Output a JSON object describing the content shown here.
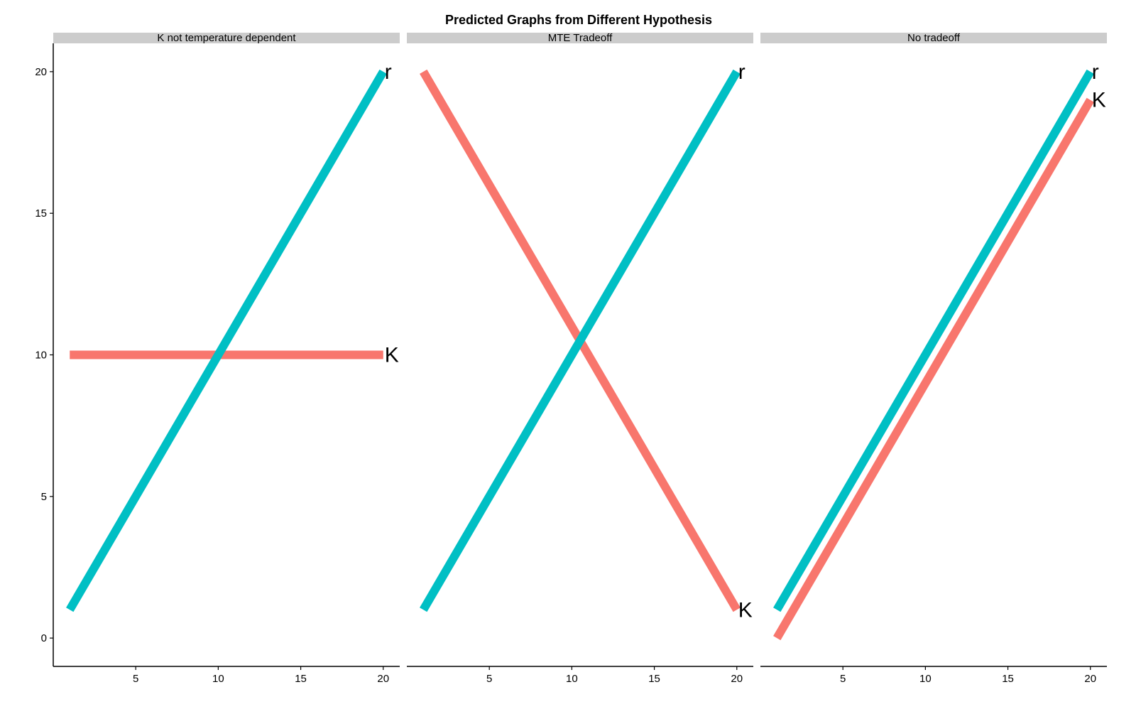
{
  "chart_data": {
    "type": "line",
    "title": "Predicted Graphs from Different Hypothesis",
    "xlabel": "",
    "ylabel": "",
    "xlim": [
      0,
      21
    ],
    "ylim": [
      -1,
      21
    ],
    "x_ticks": [
      "5",
      "10",
      "15",
      "20"
    ],
    "y_ticks": [
      "0",
      "5",
      "10",
      "15",
      "20"
    ],
    "grid": false,
    "legend": "none",
    "colors": {
      "K": "#F8766D",
      "r": "#00BFC4",
      "strip": "#CCCCCC"
    },
    "panels": [
      {
        "title": "K not temperature dependent",
        "series": [
          {
            "label": "K",
            "x": [
              1,
              20
            ],
            "y": [
              10,
              10
            ]
          },
          {
            "label": "r",
            "x": [
              1,
              20
            ],
            "y": [
              1,
              20
            ]
          }
        ]
      },
      {
        "title": "MTE Tradeoff",
        "series": [
          {
            "label": "K",
            "x": [
              1,
              20
            ],
            "y": [
              20,
              1
            ]
          },
          {
            "label": "r",
            "x": [
              1,
              20
            ],
            "y": [
              1,
              20
            ]
          }
        ]
      },
      {
        "title": "No tradeoff",
        "series": [
          {
            "label": "K",
            "x": [
              1,
              20
            ],
            "y": [
              0,
              19
            ]
          },
          {
            "label": "r",
            "x": [
              1,
              20
            ],
            "y": [
              1,
              20
            ]
          }
        ]
      }
    ]
  }
}
